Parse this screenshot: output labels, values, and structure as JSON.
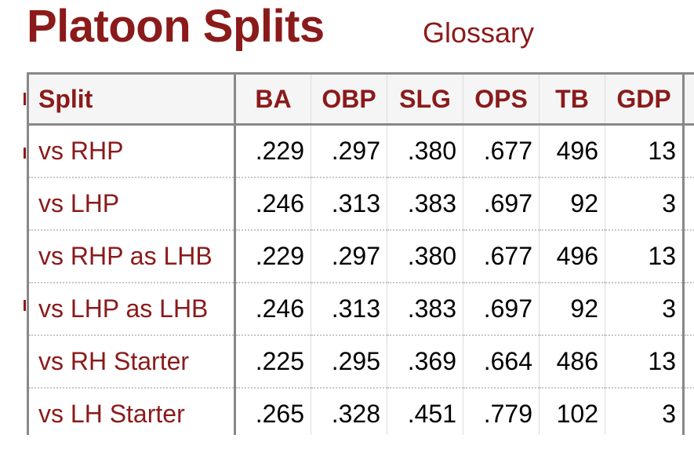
{
  "page": {
    "title": "Platoon Splits",
    "glossary_link": "Glossary"
  },
  "colors": {
    "accent": "#8b1a1a",
    "header_bg": "#f5f5f5",
    "border": "#888888"
  },
  "table": {
    "columns": [
      "Split",
      "BA",
      "OBP",
      "SLG",
      "OPS",
      "TB",
      "GDP",
      ""
    ],
    "rows": [
      {
        "split": "vs RHP",
        "ba": ".229",
        "obp": ".297",
        "slg": ".380",
        "ops": ".677",
        "tb": "496",
        "gdp": "13"
      },
      {
        "split": "vs LHP",
        "ba": ".246",
        "obp": ".313",
        "slg": ".383",
        "ops": ".697",
        "tb": "92",
        "gdp": "3"
      },
      {
        "split": "vs RHP as LHB",
        "ba": ".229",
        "obp": ".297",
        "slg": ".380",
        "ops": ".677",
        "tb": "496",
        "gdp": "13"
      },
      {
        "split": "vs LHP as LHB",
        "ba": ".246",
        "obp": ".313",
        "slg": ".383",
        "ops": ".697",
        "tb": "92",
        "gdp": "3"
      },
      {
        "split": "vs RH Starter",
        "ba": ".225",
        "obp": ".295",
        "slg": ".369",
        "ops": ".664",
        "tb": "486",
        "gdp": "13"
      },
      {
        "split": "vs LH Starter",
        "ba": ".265",
        "obp": ".328",
        "slg": ".451",
        "ops": ".779",
        "tb": "102",
        "gdp": "3"
      }
    ]
  }
}
